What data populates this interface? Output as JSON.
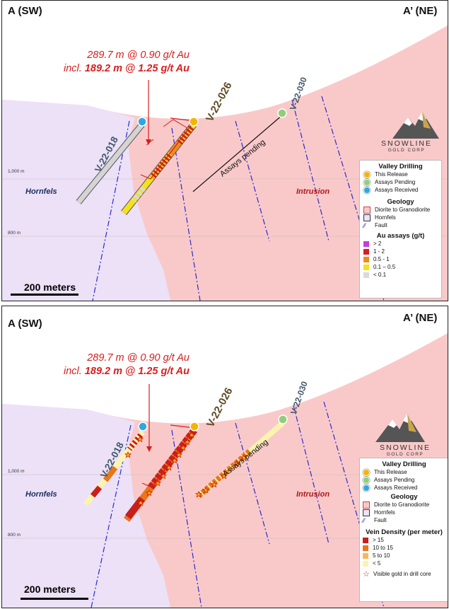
{
  "sections": [
    {
      "title_left": "A (SW)",
      "title_right": "A’ (NE)",
      "annotation_line1": "289.7 m @ 0.90 g/t Au",
      "annotation_line2_prefix": "incl. ",
      "annotation_line2_bold": "189.2 m @ 1.25 g/t Au",
      "holes": [
        "V-22-018",
        "V-22-026",
        "V-22-030"
      ],
      "assays_pending": "Assays pending",
      "rock_left": "Hornfels",
      "rock_right": "Intrusion",
      "elev_top": "1,000 m",
      "elev_bottom": "800 m",
      "scale": "200 meters",
      "logo_name": "SNOWLINE",
      "logo_sub": "GOLD CORP",
      "legend": {
        "drilling_title": "Valley Drilling",
        "drilling_items": [
          "This Release",
          "Assays Pending",
          "Assays Received"
        ],
        "geology_title": "Geology",
        "geology_items": [
          "Diorite to Granodiorite",
          "Hornfels",
          "Fault"
        ],
        "grade_title": "Au assays (g/t)",
        "grade_items": [
          "> 2",
          "1 - 2",
          "0.5 - 1",
          "0.1 – 0.5",
          "< 0.1"
        ],
        "grade_colors": [
          "#c040d8",
          "#d32020",
          "#f08a20",
          "#f5e020",
          "#d9d9d9"
        ]
      }
    },
    {
      "title_left": "A (SW)",
      "title_right": "A’ (NE)",
      "annotation_line1": "289.7 m @ 0.90 g/t Au",
      "annotation_line2_prefix": "incl. ",
      "annotation_line2_bold": "189.2 m @ 1.25 g/t Au",
      "holes": [
        "V-22-018",
        "V-22-026",
        "V-22-030"
      ],
      "assays_pending": "Assays pending",
      "rock_left": "Hornfels",
      "rock_right": "Intrusion",
      "elev_top": "1,000 m",
      "elev_bottom": "800 m",
      "scale": "200 meters",
      "logo_name": "SNOWLINE",
      "logo_sub": "GOLD CORP",
      "legend": {
        "drilling_title": "Valley Drilling",
        "drilling_items": [
          "This Release",
          "Assays Pending",
          "Assays Received"
        ],
        "geology_title": "Geology",
        "geology_items": [
          "Diorite to Granodiorite",
          "Hornfels",
          "Fault"
        ],
        "grade_title": "Vein Density (per meter)",
        "grade_items": [
          "> 15",
          "10 to 15",
          "5 to 10",
          "< 5"
        ],
        "grade_colors": [
          "#c81e1e",
          "#e8761c",
          "#f5b860",
          "#fbf3b0"
        ],
        "visible_gold": "Visible gold in drill core"
      }
    }
  ],
  "colors": {
    "intrusion": "#f9c9c9",
    "hornfels": "#ece1f7",
    "fault": "#2b2bd0",
    "annotation": "#d81e1e",
    "this_release": "#f5b400",
    "assays_pending": "#8fcf7a",
    "assays_received": "#2ea8e0"
  }
}
